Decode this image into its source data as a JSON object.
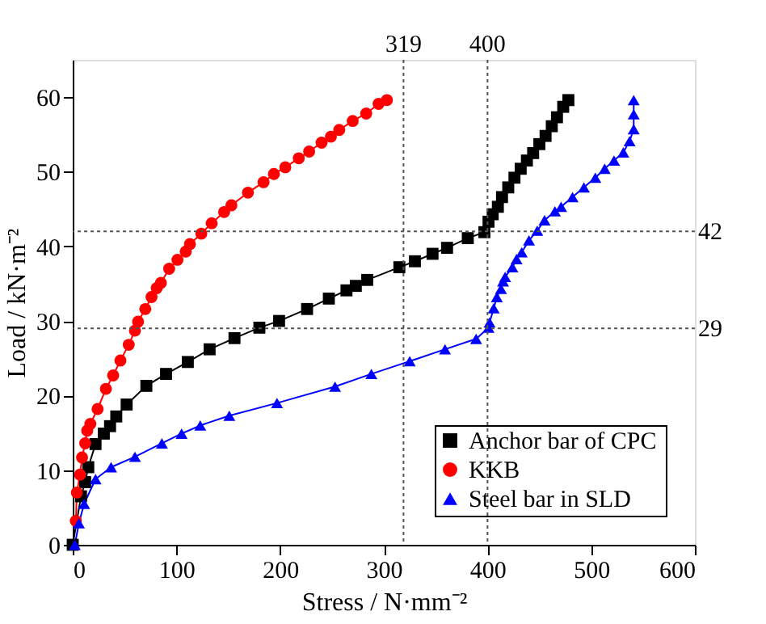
{
  "chart_data": {
    "type": "line",
    "xlabel": "Stress / N·mm⁻²",
    "ylabel": "Load / kN·m⁻²",
    "xlim": [
      0,
      600
    ],
    "xticks": [
      0,
      100,
      200,
      300,
      400,
      500,
      600
    ],
    "ylim": [
      0,
      65
    ],
    "yticks": [
      0,
      10,
      20,
      30,
      40,
      50,
      60
    ],
    "grid": false,
    "legend": "bottom right",
    "line_style": "solid",
    "ref_lines": [
      {
        "axis": "x",
        "value": 319,
        "label": "319",
        "line_style": "dotted"
      },
      {
        "axis": "x",
        "value": 400,
        "label": "400",
        "line_style": "dotted"
      },
      {
        "axis": "y",
        "value": 42,
        "label": "42",
        "line_style": "dotted"
      },
      {
        "axis": "y",
        "value": 29,
        "label": "29",
        "line_style": "dotted"
      }
    ],
    "series": [
      {
        "name": "Anchor bar of  CPC",
        "color": "#000000",
        "marker": "square",
        "x": [
          0,
          8,
          12,
          15,
          22,
          30,
          36,
          42,
          52,
          71,
          90,
          111,
          132,
          156,
          180,
          199,
          226,
          247,
          264,
          273,
          284,
          315,
          330,
          347,
          361,
          381,
          397,
          401,
          405,
          410,
          414,
          420,
          426,
          432,
          438,
          444,
          450,
          456,
          462,
          467,
          473,
          478
        ],
        "values": [
          0,
          6.5,
          8.4,
          10.4,
          13.5,
          14.9,
          15.9,
          17.2,
          18.8,
          21.3,
          22.9,
          24.5,
          26.2,
          27.7,
          29.1,
          30,
          31.6,
          33,
          34.1,
          34.7,
          35.5,
          37.2,
          38,
          39,
          39.8,
          41.1,
          41.9,
          43.3,
          44.3,
          45.3,
          46.6,
          47.9,
          49.2,
          50.4,
          51.5,
          52.5,
          53.7,
          54.8,
          56.1,
          57.3,
          58.7,
          59.6
        ]
      },
      {
        "name": "KKB",
        "color": "#ff0000",
        "marker": "circle",
        "x": [
          3,
          4,
          7,
          9,
          12,
          14,
          17,
          24,
          32,
          39,
          46,
          54,
          60,
          63,
          70,
          76,
          81,
          85,
          93,
          101,
          109,
          113,
          124,
          134,
          146,
          153,
          169,
          184,
          194,
          205,
          218,
          228,
          240,
          249,
          257,
          270,
          283,
          295,
          303
        ],
        "values": [
          3.2,
          7,
          9.4,
          11.7,
          13.6,
          15.3,
          16.2,
          18.2,
          20.9,
          22.7,
          24.7,
          26.8,
          28.7,
          29.9,
          31.6,
          33.2,
          34.4,
          35.1,
          37,
          38.2,
          39.3,
          40.3,
          41.7,
          43.1,
          44.6,
          45.5,
          47.2,
          48.6,
          49.7,
          50.6,
          51.8,
          52.7,
          53.9,
          54.7,
          55.6,
          56.8,
          57.8,
          59.1,
          59.6
        ]
      },
      {
        "name": "Steel bar in SLD",
        "color": "#0000ff",
        "marker": "triangle",
        "x": [
          2,
          6,
          11,
          22,
          37,
          60,
          86,
          105,
          123,
          151,
          197,
          253,
          288,
          325,
          359,
          389,
          401,
          402,
          406,
          409,
          413,
          415,
          417,
          424,
          428,
          433,
          440,
          448,
          455,
          465,
          471,
          482,
          493,
          504,
          513,
          522,
          531,
          537,
          541,
          541,
          541
        ],
        "values": [
          0,
          2.9,
          5.5,
          8.8,
          10.4,
          11.8,
          13.6,
          14.9,
          16,
          17.3,
          19,
          21.2,
          22.9,
          24.6,
          26.2,
          27.6,
          29.1,
          29.8,
          31.7,
          33.2,
          34.3,
          35.3,
          35.9,
          37.2,
          38.3,
          39.2,
          40.8,
          42.1,
          43.5,
          44.7,
          45.3,
          46.6,
          47.9,
          49.2,
          50.4,
          51.5,
          52.6,
          54.1,
          55.7,
          57.7,
          59.6
        ]
      }
    ]
  }
}
